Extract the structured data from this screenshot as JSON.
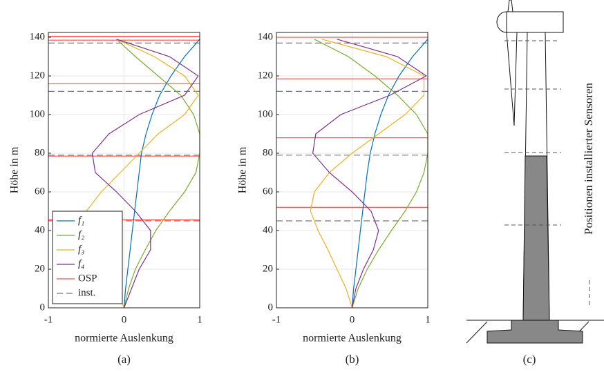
{
  "chart_data": [
    {
      "type": "line",
      "caption": "(a)",
      "xlabel": "normierte Auslenkung",
      "ylabel": "Höhe in m",
      "xlim": [
        -1,
        1
      ],
      "ylim": [
        0,
        142.5
      ],
      "xticks": [
        -1,
        0,
        1
      ],
      "yticks": [
        0,
        20,
        40,
        60,
        80,
        100,
        120,
        140
      ],
      "grid": true,
      "legend": "lower left",
      "y": [
        0,
        10,
        20,
        30,
        40,
        50,
        60,
        70,
        80,
        90,
        100,
        110,
        120,
        130,
        139
      ],
      "series": [
        {
          "name": "f₁",
          "color": "#0072bd",
          "values": [
            0,
            0.02,
            0.05,
            0.08,
            0.11,
            0.14,
            0.17,
            0.2,
            0.23,
            0.29,
            0.37,
            0.47,
            0.62,
            0.8,
            1.0
          ]
        },
        {
          "name": "f₂",
          "color": "#77ac30",
          "values": [
            0,
            0.06,
            0.15,
            0.28,
            0.42,
            0.6,
            0.8,
            0.95,
            1.0,
            1.0,
            0.92,
            0.75,
            0.45,
            0.15,
            -0.1
          ]
        },
        {
          "name": "f₃",
          "color": "#edb120",
          "values": [
            0,
            -0.1,
            -0.22,
            -0.35,
            -0.45,
            -0.5,
            -0.3,
            -0.05,
            0.2,
            0.45,
            0.8,
            0.98,
            0.8,
            0.4,
            -0.1
          ]
        },
        {
          "name": "f₄",
          "color": "#7e2f8e",
          "values": [
            0,
            0.1,
            0.2,
            0.35,
            0.35,
            0.15,
            -0.1,
            -0.38,
            -0.42,
            -0.2,
            0.2,
            0.8,
            0.98,
            0.6,
            -0.1
          ]
        }
      ],
      "hlines": [
        {
          "name": "OSP",
          "color": "#ff4d4d",
          "dash": false,
          "values": [
            45.5,
            78.5,
            116,
            138.5,
            140.5
          ]
        },
        {
          "name": "inst.",
          "color": "#777777",
          "dash": true,
          "values": [
            45,
            79,
            112,
            137
          ]
        }
      ]
    },
    {
      "type": "line",
      "caption": "(b)",
      "xlabel": "normierte Auslenkung",
      "ylabel": "Höhe in m",
      "xlim": [
        -1,
        1
      ],
      "ylim": [
        0,
        142.5
      ],
      "xticks": [
        -1,
        0,
        1
      ],
      "yticks": [
        0,
        20,
        40,
        60,
        80,
        100,
        120,
        140
      ],
      "grid": true,
      "y": [
        0,
        10,
        20,
        30,
        40,
        50,
        60,
        70,
        80,
        90,
        100,
        110,
        120,
        130,
        139
      ],
      "series": [
        {
          "color": "#0072bd",
          "values": [
            0,
            0.02,
            0.05,
            0.08,
            0.11,
            0.14,
            0.17,
            0.2,
            0.24,
            0.3,
            0.38,
            0.48,
            0.62,
            0.8,
            1.0
          ]
        },
        {
          "color": "#77ac30",
          "values": [
            0,
            0.08,
            0.2,
            0.35,
            0.52,
            0.7,
            0.85,
            0.95,
            1.0,
            1.0,
            0.85,
            0.6,
            0.3,
            -0.05,
            -0.5
          ]
        },
        {
          "color": "#edb120",
          "values": [
            0,
            -0.08,
            -0.2,
            -0.32,
            -0.45,
            -0.55,
            -0.5,
            -0.3,
            0,
            0.35,
            0.7,
            0.95,
            0.95,
            0.45,
            -0.4
          ]
        },
        {
          "color": "#7e2f8e",
          "values": [
            0,
            0.05,
            0.15,
            0.28,
            0.35,
            0.25,
            0,
            -0.3,
            -0.52,
            -0.48,
            -0.15,
            0.5,
            0.98,
            0.6,
            -0.2
          ]
        }
      ],
      "hlines": [
        {
          "color": "#ff4d4d",
          "dash": false,
          "values": [
            52,
            88,
            118.5,
            140
          ]
        },
        {
          "color": "#777777",
          "dash": true,
          "values": [
            45,
            79,
            112,
            137
          ]
        }
      ]
    }
  ],
  "diagram": {
    "caption": "(c)",
    "label": "Positionen installierter Sensoren"
  }
}
